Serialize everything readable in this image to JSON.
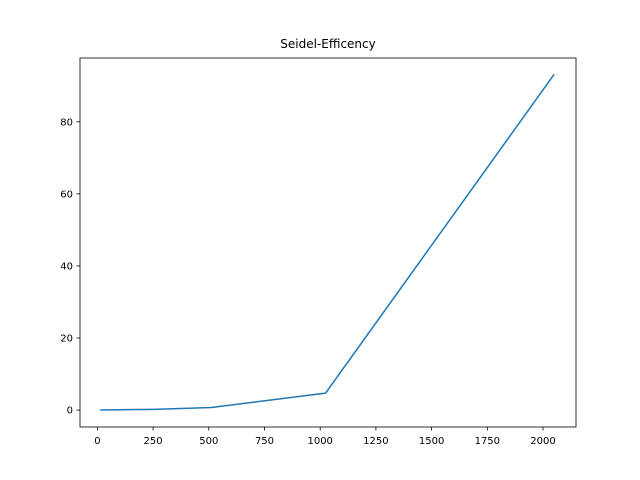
{
  "chart_data": {
    "type": "line",
    "title": "Seidel-Efficency",
    "xlabel": "",
    "ylabel": "",
    "xlim": [
      -78,
      2148
    ],
    "ylim": [
      -4.7,
      97.7
    ],
    "x_ticks": [
      0,
      250,
      500,
      750,
      1000,
      1250,
      1500,
      1750,
      2000
    ],
    "x_tick_labels": [
      "0",
      "250",
      "500",
      "750",
      "1000",
      "1250",
      "1500",
      "1750",
      "2000"
    ],
    "y_ticks": [
      0,
      20,
      40,
      60,
      80
    ],
    "y_tick_labels": [
      "0",
      "20",
      "40",
      "60",
      "80"
    ],
    "grid": false,
    "series": [
      {
        "color": "#1f77b4",
        "x": [
          16,
          256,
          512,
          1024,
          2048
        ],
        "y": [
          0.02,
          0.2,
          0.7,
          4.7,
          93.0
        ]
      }
    ]
  }
}
